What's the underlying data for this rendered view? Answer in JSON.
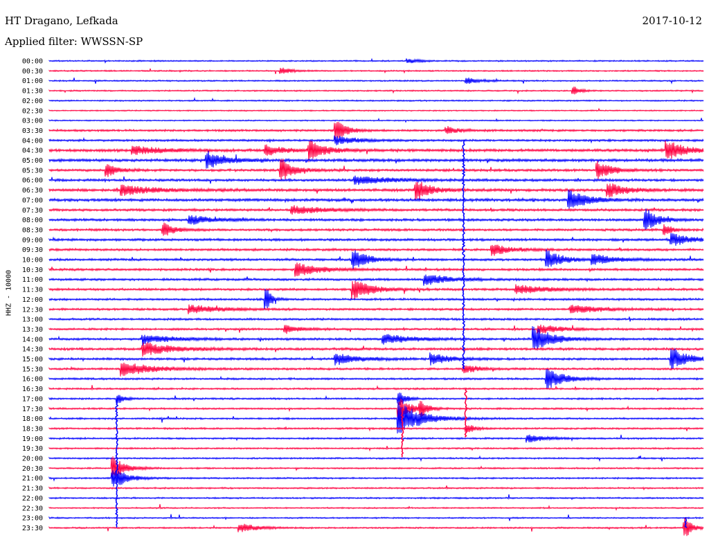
{
  "header": {
    "station": "HT Dragano, Lefkada",
    "date": "2017-10-12",
    "filter": "Applied filter: WWSSN-SP"
  },
  "chart_data": {
    "type": "line",
    "title": "HT Dragano, Lefkada",
    "subtitle": "Applied filter: WWSSN-SP",
    "date": "2017-10-12",
    "ylabel": "HHZ - 10000",
    "xlabel": "",
    "row_labels": [
      "00:00",
      "00:30",
      "01:00",
      "01:30",
      "02:00",
      "02:30",
      "03:00",
      "03:30",
      "04:00",
      "04:30",
      "05:00",
      "05:30",
      "06:00",
      "06:30",
      "07:00",
      "07:30",
      "08:00",
      "08:30",
      "09:00",
      "09:30",
      "10:00",
      "10:30",
      "11:00",
      "11:30",
      "12:00",
      "12:30",
      "13:00",
      "13:30",
      "14:00",
      "14:30",
      "15:00",
      "15:30",
      "16:00",
      "16:30",
      "17:00",
      "17:30",
      "18:00",
      "18:30",
      "19:00",
      "19:30",
      "20:00",
      "20:30",
      "21:00",
      "21:30",
      "22:00",
      "22:30",
      "23:00",
      "23:30"
    ],
    "row_minutes": 30,
    "row_colors": [
      "#0000ff",
      "#ff0040"
    ],
    "noise_levels": [
      0.8,
      0.8,
      0.8,
      0.8,
      0.8,
      0.7,
      0.7,
      1.2,
      1.2,
      1.6,
      1.6,
      1.4,
      1.4,
      1.6,
      1.6,
      1.4,
      1.4,
      1.3,
      1.4,
      1.3,
      1.3,
      1.3,
      1.3,
      1.3,
      1.2,
      1.2,
      1.2,
      1.2,
      1.3,
      1.4,
      1.3,
      1.2,
      1.1,
      1.0,
      1.0,
      1.0,
      1.0,
      1.0,
      1.0,
      0.9,
      0.9,
      0.9,
      0.9,
      0.9,
      0.9,
      0.8,
      0.8,
      0.9
    ],
    "events": [
      {
        "row": 0,
        "minute": 16.5,
        "amplitude": 3,
        "duration_min": 1.0
      },
      {
        "row": 1,
        "minute": 10.7,
        "amplitude": 5,
        "duration_min": 0.8
      },
      {
        "row": 2,
        "minute": 19.2,
        "amplitude": 4,
        "duration_min": 1.2
      },
      {
        "row": 3,
        "minute": 24.1,
        "amplitude": 6,
        "duration_min": 0.5
      },
      {
        "row": 7,
        "minute": 13.2,
        "amplitude": 16,
        "duration_min": 0.8
      },
      {
        "row": 7,
        "minute": 18.3,
        "amplitude": 5,
        "duration_min": 1.0
      },
      {
        "row": 8,
        "minute": 13.2,
        "amplitude": 6,
        "duration_min": 1.8
      },
      {
        "row": 9,
        "minute": 3.9,
        "amplitude": 6,
        "duration_min": 2.5
      },
      {
        "row": 9,
        "minute": 10.0,
        "amplitude": 7,
        "duration_min": 1.5
      },
      {
        "row": 9,
        "minute": 12.0,
        "amplitude": 12,
        "duration_min": 1.5
      },
      {
        "row": 9,
        "minute": 28.4,
        "amplitude": 14,
        "duration_min": 1.5
      },
      {
        "row": 10,
        "minute": 7.3,
        "amplitude": 12,
        "duration_min": 1.5
      },
      {
        "row": 11,
        "minute": 2.7,
        "amplitude": 10,
        "duration_min": 0.8
      },
      {
        "row": 11,
        "minute": 10.7,
        "amplitude": 16,
        "duration_min": 1.0
      },
      {
        "row": 11,
        "minute": 25.2,
        "amplitude": 12,
        "duration_min": 1.2
      },
      {
        "row": 12,
        "minute": 14.1,
        "amplitude": 6,
        "duration_min": 3.0
      },
      {
        "row": 13,
        "minute": 3.4,
        "amplitude": 7,
        "duration_min": 2.5
      },
      {
        "row": 13,
        "minute": 16.9,
        "amplitude": 14,
        "duration_min": 1.2
      },
      {
        "row": 13,
        "minute": 25.7,
        "amplitude": 10,
        "duration_min": 1.5
      },
      {
        "row": 14,
        "minute": 23.9,
        "amplitude": 15,
        "duration_min": 1.5
      },
      {
        "row": 15,
        "minute": 11.2,
        "amplitude": 6,
        "duration_min": 2.5
      },
      {
        "row": 16,
        "minute": 6.5,
        "amplitude": 6,
        "duration_min": 2.0
      },
      {
        "row": 16,
        "minute": 27.4,
        "amplitude": 16,
        "duration_min": 1.0
      },
      {
        "row": 17,
        "minute": 5.3,
        "amplitude": 9,
        "duration_min": 1.0
      },
      {
        "row": 17,
        "minute": 28.3,
        "amplitude": 7,
        "duration_min": 0.6
      },
      {
        "row": 18,
        "minute": 28.6,
        "amplitude": 9,
        "duration_min": 1.5
      },
      {
        "row": 19,
        "minute": 20.4,
        "amplitude": 8,
        "duration_min": 1.5
      },
      {
        "row": 20,
        "minute": 14.0,
        "amplitude": 14,
        "duration_min": 1.2
      },
      {
        "row": 20,
        "minute": 22.9,
        "amplitude": 14,
        "duration_min": 1.2
      },
      {
        "row": 20,
        "minute": 25.0,
        "amplitude": 7,
        "duration_min": 2.0
      },
      {
        "row": 21,
        "minute": 11.4,
        "amplitude": 9,
        "duration_min": 2.0
      },
      {
        "row": 22,
        "minute": 17.3,
        "amplitude": 8,
        "duration_min": 2.0
      },
      {
        "row": 23,
        "minute": 14.0,
        "amplitude": 14,
        "duration_min": 1.5
      },
      {
        "row": 23,
        "minute": 21.5,
        "amplitude": 6,
        "duration_min": 2.5
      },
      {
        "row": 24,
        "minute": 10.0,
        "amplitude": 16,
        "duration_min": 0.4
      },
      {
        "row": 25,
        "minute": 6.5,
        "amplitude": 6,
        "duration_min": 2.5
      },
      {
        "row": 25,
        "minute": 24.0,
        "amplitude": 6,
        "duration_min": 2.5
      },
      {
        "row": 27,
        "minute": 10.9,
        "amplitude": 6,
        "duration_min": 1.2
      },
      {
        "row": 27,
        "minute": 22.5,
        "amplitude": 6,
        "duration_min": 2.0
      },
      {
        "row": 28,
        "minute": 4.4,
        "amplitude": 6,
        "duration_min": 2.5
      },
      {
        "row": 28,
        "minute": 15.4,
        "amplitude": 7,
        "duration_min": 2.5
      },
      {
        "row": 28,
        "minute": 22.3,
        "amplitude": 18,
        "duration_min": 1.5
      },
      {
        "row": 29,
        "minute": 4.4,
        "amplitude": 9,
        "duration_min": 2.5
      },
      {
        "row": 30,
        "minute": 13.2,
        "amplitude": 8,
        "duration_min": 2.0
      },
      {
        "row": 30,
        "minute": 17.6,
        "amplitude": 8,
        "duration_min": 1.5
      },
      {
        "row": 30,
        "minute": 28.6,
        "amplitude": 14,
        "duration_min": 1.5
      },
      {
        "row": 31,
        "minute": 3.4,
        "amplitude": 10,
        "duration_min": 2.5
      },
      {
        "row": 31,
        "minute": 19.1,
        "amplitude": 6,
        "duration_min": 1.2
      },
      {
        "row": 32,
        "minute": 22.9,
        "amplitude": 14,
        "duration_min": 1.5
      },
      {
        "row": 34,
        "minute": 3.2,
        "amplitude": 6,
        "duration_min": 0.6
      },
      {
        "row": 34,
        "minute": 16.1,
        "amplitude": 10,
        "duration_min": 0.6
      },
      {
        "row": 35,
        "minute": 16.1,
        "amplitude": 14,
        "duration_min": 1.0
      },
      {
        "row": 35,
        "minute": 17.1,
        "amplitude": 10,
        "duration_min": 0.6
      },
      {
        "row": 36,
        "minute": 16.1,
        "amplitude": 22,
        "duration_min": 2.0
      },
      {
        "row": 37,
        "minute": 19.2,
        "amplitude": 7,
        "duration_min": 0.6
      },
      {
        "row": 38,
        "minute": 22.0,
        "amplitude": 5,
        "duration_min": 1.5
      },
      {
        "row": 41,
        "minute": 3.0,
        "amplitude": 16,
        "duration_min": 1.0
      },
      {
        "row": 42,
        "minute": 3.0,
        "amplitude": 14,
        "duration_min": 1.2
      },
      {
        "row": 47,
        "minute": 8.8,
        "amplitude": 6,
        "duration_min": 1.5
      },
      {
        "row": 47,
        "minute": 29.2,
        "amplitude": 14,
        "duration_min": 0.6
      }
    ],
    "spikes": [
      {
        "row_start": 8,
        "row_end": 31,
        "minute": 19.0
      },
      {
        "row_start": 33,
        "row_end": 38,
        "minute": 19.1
      },
      {
        "row_start": 34,
        "row_end": 47,
        "minute": 3.1
      },
      {
        "row_start": 35,
        "row_end": 40,
        "minute": 16.2
      },
      {
        "row_start": 46,
        "row_end": 47,
        "minute": 29.2
      }
    ]
  }
}
